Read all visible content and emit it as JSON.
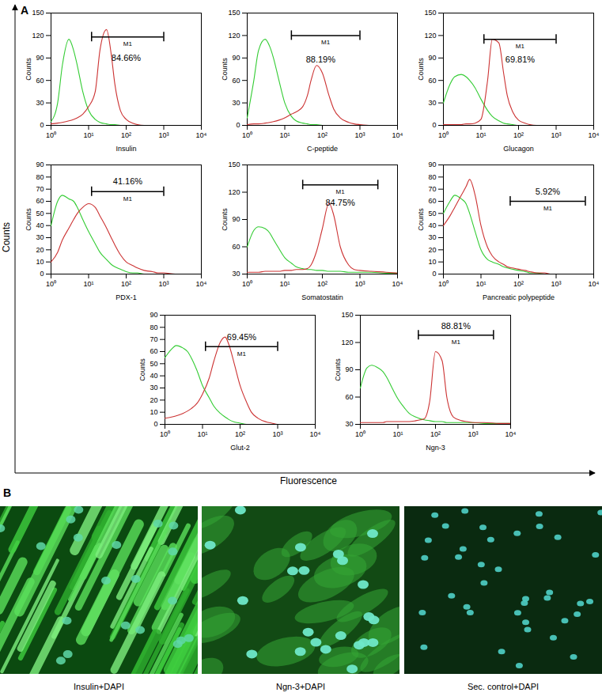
{
  "chart_data": [
    {
      "type": "line",
      "xlabel": "Insulin",
      "ylabel": "Counts",
      "log": "x",
      "xlim": [
        1,
        10000
      ],
      "xticks": [
        {
          "value": 1,
          "label": "10⁰"
        },
        {
          "value": 10,
          "label": "10¹"
        },
        {
          "value": 100,
          "label": "10²"
        },
        {
          "value": 1000,
          "label": "10³"
        },
        {
          "value": 10000,
          "label": "10⁴"
        }
      ],
      "ylim": [
        0,
        150
      ],
      "yticks": [
        0,
        30,
        60,
        90,
        120,
        150
      ],
      "x": [
        1,
        1.5,
        2,
        3,
        4,
        5,
        7,
        10,
        15,
        20,
        30,
        40,
        50,
        70,
        100,
        150,
        200,
        300,
        500,
        700,
        1000,
        2000,
        5000,
        10000
      ],
      "series": [
        {
          "color": "#33cc33",
          "values": [
            5,
            30,
            80,
            115,
            100,
            80,
            45,
            20,
            8,
            4,
            2,
            1,
            1,
            0,
            0,
            0,
            0,
            0,
            0,
            0,
            0,
            0,
            0,
            0
          ]
        },
        {
          "color": "#cc3333",
          "values": [
            2,
            3,
            4,
            6,
            8,
            10,
            15,
            25,
            45,
            100,
            128,
            95,
            55,
            20,
            8,
            3,
            1,
            0,
            0,
            0,
            0,
            0,
            0,
            0
          ]
        }
      ],
      "gate": {
        "from": 12,
        "to": 1000,
        "level": 118,
        "label": "M1",
        "percent": {
          "value": 84.66,
          "label": "84.66%",
          "x": 100,
          "y": 90
        }
      }
    },
    {
      "type": "line",
      "xlabel": "C-peptide",
      "ylabel": "Counts",
      "log": "x",
      "xlim": [
        1,
        10000
      ],
      "xticks": [
        {
          "value": 1,
          "label": "10⁰"
        },
        {
          "value": 10,
          "label": "10¹"
        },
        {
          "value": 100,
          "label": "10²"
        },
        {
          "value": 1000,
          "label": "10³"
        },
        {
          "value": 10000,
          "label": "10⁴"
        }
      ],
      "ylim": [
        0,
        150
      ],
      "yticks": [
        0,
        30,
        60,
        90,
        120,
        150
      ],
      "x": [
        1,
        1.5,
        2,
        3,
        4,
        5,
        7,
        10,
        15,
        20,
        30,
        40,
        50,
        70,
        100,
        150,
        200,
        300,
        500,
        700,
        1000,
        2000,
        5000,
        10000
      ],
      "series": [
        {
          "color": "#33cc33",
          "values": [
            10,
            60,
            100,
            115,
            105,
            90,
            60,
            30,
            12,
            6,
            3,
            2,
            1,
            1,
            0,
            0,
            0,
            0,
            0,
            0,
            0,
            0,
            0,
            0
          ]
        },
        {
          "color": "#cc3333",
          "values": [
            1,
            2,
            2,
            3,
            4,
            5,
            7,
            10,
            15,
            18,
            25,
            40,
            60,
            80,
            70,
            40,
            22,
            10,
            4,
            2,
            1,
            0,
            0,
            0
          ]
        }
      ],
      "gate": {
        "from": 15,
        "to": 1000,
        "level": 120,
        "label": "M1",
        "percent": {
          "value": 88.19,
          "label": "88.19%",
          "x": 90,
          "y": 88
        }
      }
    },
    {
      "type": "line",
      "xlabel": "Glucagon",
      "ylabel": "Counts",
      "log": "x",
      "xlim": [
        1,
        10000
      ],
      "xticks": [
        {
          "value": 1,
          "label": "10⁰"
        },
        {
          "value": 10,
          "label": "10¹"
        },
        {
          "value": 100,
          "label": "10²"
        },
        {
          "value": 1000,
          "label": "10³"
        },
        {
          "value": 10000,
          "label": "10⁴"
        }
      ],
      "ylim": [
        0,
        150
      ],
      "yticks": [
        0,
        30,
        60,
        90,
        120,
        150
      ],
      "x": [
        1,
        1.5,
        2,
        3,
        4,
        5,
        7,
        10,
        15,
        20,
        30,
        40,
        50,
        70,
        100,
        150,
        200,
        300,
        500,
        700,
        1000,
        2000,
        5000,
        10000
      ],
      "series": [
        {
          "color": "#33cc33",
          "values": [
            30,
            55,
            65,
            68,
            65,
            60,
            50,
            35,
            20,
            12,
            6,
            3,
            2,
            1,
            0,
            0,
            0,
            0,
            0,
            0,
            0,
            0,
            0,
            0
          ]
        },
        {
          "color": "#cc3333",
          "values": [
            1,
            1,
            1,
            1,
            2,
            2,
            3,
            8,
            60,
            115,
            110,
            70,
            40,
            18,
            7,
            3,
            1,
            0,
            0,
            0,
            0,
            0,
            0,
            0
          ]
        }
      ],
      "gate": {
        "from": 12,
        "to": 1000,
        "level": 115,
        "label": "M1",
        "percent": {
          "value": 69.81,
          "label": "69.81%",
          "x": 110,
          "y": 88
        }
      }
    },
    {
      "type": "line",
      "xlabel": "PDX-1",
      "ylabel": "Counts",
      "log": "x",
      "xlim": [
        1,
        10000
      ],
      "xticks": [
        {
          "value": 1,
          "label": "10⁰"
        },
        {
          "value": 10,
          "label": "10¹"
        },
        {
          "value": 100,
          "label": "10²"
        },
        {
          "value": 1000,
          "label": "10³"
        },
        {
          "value": 10000,
          "label": "10⁴"
        }
      ],
      "ylim": [
        0,
        90
      ],
      "yticks": [
        0,
        10,
        20,
        30,
        40,
        50,
        60,
        70,
        80,
        90
      ],
      "x": [
        1,
        1.5,
        2,
        3,
        4,
        5,
        7,
        10,
        15,
        20,
        30,
        40,
        50,
        70,
        100,
        150,
        200,
        300,
        500,
        700,
        1000,
        2000,
        5000,
        10000
      ],
      "series": [
        {
          "color": "#33cc33",
          "values": [
            40,
            60,
            65,
            62,
            60,
            55,
            45,
            35,
            25,
            18,
            12,
            8,
            6,
            4,
            2,
            1,
            1,
            0,
            0,
            0,
            0,
            0,
            0,
            0
          ]
        },
        {
          "color": "#cc3333",
          "values": [
            10,
            18,
            28,
            38,
            45,
            50,
            55,
            58,
            55,
            48,
            38,
            30,
            24,
            16,
            10,
            7,
            5,
            3,
            2,
            1,
            1,
            0,
            0,
            0
          ]
        }
      ],
      "gate": {
        "from": 12,
        "to": 1000,
        "level": 68,
        "label": "M1",
        "percent": {
          "value": 41.16,
          "label": "41.16%",
          "x": 110,
          "y": 76
        }
      }
    },
    {
      "type": "line",
      "xlabel": "Somatostatin",
      "ylabel": "Counts",
      "log": "x",
      "xlim": [
        1,
        10000
      ],
      "xticks": [
        {
          "value": 1,
          "label": "10⁰"
        },
        {
          "value": 10,
          "label": "10¹"
        },
        {
          "value": 100,
          "label": "10²"
        },
        {
          "value": 1000,
          "label": "10³"
        },
        {
          "value": 10000,
          "label": "10⁴"
        }
      ],
      "ylim": [
        30,
        150
      ],
      "yticks": [
        30,
        60,
        90,
        120,
        150
      ],
      "x": [
        1,
        1.5,
        2,
        3,
        4,
        5,
        7,
        10,
        15,
        20,
        30,
        40,
        50,
        70,
        100,
        150,
        200,
        300,
        500,
        700,
        1000,
        2000,
        5000,
        10000
      ],
      "series": [
        {
          "color": "#33cc33",
          "values": [
            60,
            78,
            82,
            80,
            75,
            68,
            58,
            48,
            42,
            38,
            36,
            35,
            35,
            34,
            34,
            33,
            33,
            33,
            32,
            32,
            32,
            32,
            31,
            31
          ]
        },
        {
          "color": "#cc3333",
          "values": [
            32,
            32,
            32,
            33,
            33,
            33,
            33,
            34,
            34,
            35,
            35,
            36,
            40,
            55,
            80,
            108,
            95,
            60,
            40,
            35,
            34,
            33,
            32,
            31
          ]
        }
      ],
      "gate": {
        "from": 30,
        "to": 3000,
        "level": 128,
        "label": "M1",
        "percent": {
          "value": 84.75,
          "label": "84.75%",
          "x": 300,
          "y": 108
        }
      }
    },
    {
      "type": "line",
      "xlabel": "Pancreatic polypeptide",
      "ylabel": "Counts",
      "log": "x",
      "xlim": [
        1,
        10000
      ],
      "xticks": [
        {
          "value": 1,
          "label": "10⁰"
        },
        {
          "value": 10,
          "label": "10¹"
        },
        {
          "value": 100,
          "label": "10²"
        },
        {
          "value": 1000,
          "label": "10³"
        },
        {
          "value": 10000,
          "label": "10⁴"
        }
      ],
      "ylim": [
        0,
        90
      ],
      "yticks": [
        0,
        10,
        20,
        30,
        40,
        50,
        60,
        70,
        80,
        90
      ],
      "x": [
        1,
        1.5,
        2,
        3,
        4,
        5,
        7,
        10,
        15,
        20,
        30,
        40,
        50,
        70,
        100,
        150,
        200,
        300,
        500,
        700,
        1000,
        2000,
        5000,
        10000
      ],
      "series": [
        {
          "color": "#33cc33",
          "values": [
            50,
            60,
            65,
            62,
            58,
            50,
            35,
            20,
            12,
            10,
            8,
            6,
            5,
            4,
            3,
            2,
            1,
            1,
            0,
            0,
            0,
            0,
            0,
            0
          ]
        },
        {
          "color": "#cc3333",
          "values": [
            40,
            48,
            55,
            65,
            72,
            78,
            65,
            40,
            22,
            15,
            10,
            8,
            6,
            5,
            4,
            3,
            2,
            1,
            1,
            0,
            0,
            0,
            0,
            0
          ]
        }
      ],
      "gate": {
        "from": 60,
        "to": 6000,
        "level": 60,
        "label": "M1",
        "percent": {
          "value": 5.92,
          "label": "5.92%",
          "x": 600,
          "y": 68
        }
      }
    },
    {
      "type": "line",
      "xlabel": "Glut-2",
      "ylabel": "Counts",
      "log": "x",
      "xlim": [
        1,
        10000
      ],
      "xticks": [
        {
          "value": 1,
          "label": "10⁰"
        },
        {
          "value": 10,
          "label": "10¹"
        },
        {
          "value": 100,
          "label": "10²"
        },
        {
          "value": 1000,
          "label": "10³"
        },
        {
          "value": 10000,
          "label": "10⁴"
        }
      ],
      "ylim": [
        0,
        90
      ],
      "yticks": [
        0,
        10,
        20,
        30,
        40,
        50,
        60,
        70,
        80,
        90
      ],
      "x": [
        1,
        1.5,
        2,
        3,
        4,
        5,
        7,
        10,
        15,
        20,
        30,
        40,
        50,
        70,
        100,
        150,
        200,
        300,
        500,
        700,
        1000,
        2000,
        5000,
        10000
      ],
      "series": [
        {
          "color": "#33cc33",
          "values": [
            55,
            62,
            65,
            63,
            60,
            55,
            45,
            32,
            22,
            15,
            9,
            6,
            4,
            2,
            1,
            0,
            0,
            0,
            0,
            0,
            0,
            0,
            0,
            0
          ]
        },
        {
          "color": "#cc3333",
          "values": [
            5,
            6,
            7,
            9,
            11,
            13,
            17,
            25,
            38,
            52,
            68,
            72,
            66,
            50,
            32,
            18,
            10,
            5,
            2,
            1,
            0,
            0,
            0,
            0
          ]
        }
      ],
      "gate": {
        "from": 12,
        "to": 1000,
        "level": 64,
        "label": "M1",
        "percent": {
          "value": 69.45,
          "label": "69.45%",
          "x": 110,
          "y": 72
        }
      }
    },
    {
      "type": "line",
      "xlabel": "Ngn-3",
      "ylabel": "Counts",
      "log": "x",
      "xlim": [
        1,
        10000
      ],
      "xticks": [
        {
          "value": 1,
          "label": "10⁰"
        },
        {
          "value": 10,
          "label": "10¹"
        },
        {
          "value": 100,
          "label": "10²"
        },
        {
          "value": 1000,
          "label": "10³"
        },
        {
          "value": 10000,
          "label": "10⁴"
        }
      ],
      "ylim": [
        30,
        150
      ],
      "yticks": [
        30,
        60,
        90,
        120,
        150
      ],
      "x": [
        1,
        1.5,
        2,
        3,
        4,
        5,
        7,
        10,
        15,
        20,
        30,
        40,
        50,
        70,
        100,
        150,
        200,
        300,
        500,
        700,
        1000,
        2000,
        5000,
        10000
      ],
      "series": [
        {
          "color": "#33cc33",
          "values": [
            70,
            92,
            95,
            92,
            88,
            82,
            70,
            58,
            48,
            42,
            38,
            36,
            35,
            34,
            33,
            33,
            32,
            32,
            32,
            32,
            32,
            31,
            31,
            31
          ]
        },
        {
          "color": "#cc3333",
          "values": [
            32,
            32,
            32,
            32,
            32,
            33,
            33,
            33,
            33,
            33,
            34,
            35,
            36,
            55,
            110,
            100,
            60,
            38,
            34,
            33,
            32,
            32,
            31,
            31
          ]
        }
      ],
      "gate": {
        "from": 35,
        "to": 3500,
        "level": 128,
        "label": "M1",
        "percent": {
          "value": 88.81,
          "label": "88.81%",
          "x": 350,
          "y": 138
        }
      }
    }
  ],
  "figure": {
    "panel_labels": [
      "A",
      "B"
    ],
    "y_label": "Counts",
    "x_label": "Fluorescence",
    "images": [
      {
        "caption": "Insulin+DAPI"
      },
      {
        "caption": "Ngn-3+DAPI"
      },
      {
        "caption": "Sec. control+DAPI"
      }
    ]
  }
}
